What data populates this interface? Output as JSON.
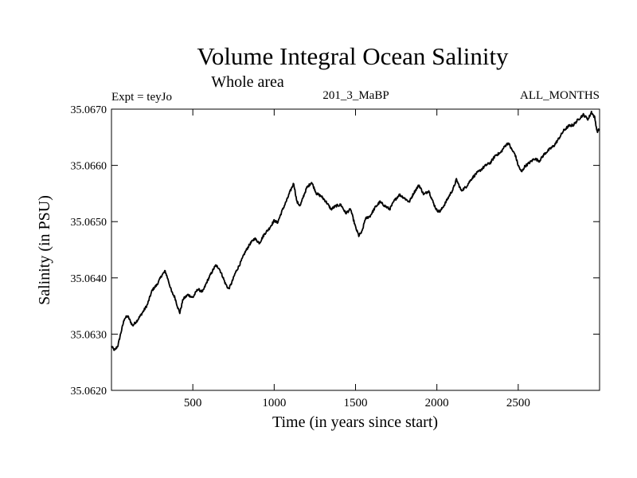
{
  "chart_data": {
    "type": "line",
    "title": "Volume Integral Ocean Salinity",
    "subtitle": "Whole area",
    "header_left": "Expt = teyJo",
    "header_center": "201_3_MaBP",
    "header_right": "ALL_MONTHS",
    "xlabel": "Time (in years since start)",
    "ylabel": "Salinity (in PSU)",
    "xlim": [
      0,
      3000
    ],
    "ylim": [
      35.062,
      35.067
    ],
    "x_ticks": [
      500,
      1000,
      1500,
      2000,
      2500
    ],
    "x_tick_labels": [
      "500",
      "1000",
      "1500",
      "2000",
      "2500"
    ],
    "y_ticks": [
      35.062,
      35.063,
      35.064,
      35.065,
      35.066,
      35.067
    ],
    "y_tick_labels": [
      "35.0620",
      "35.0630",
      "35.0640",
      "35.0650",
      "35.0660",
      "35.0670"
    ],
    "grid": false,
    "line_color": "#000000",
    "series": [
      {
        "name": "Salinity",
        "x": [
          0,
          20,
          40,
          60,
          80,
          100,
          130,
          160,
          190,
          220,
          250,
          280,
          310,
          330,
          350,
          370,
          390,
          410,
          420,
          440,
          470,
          500,
          530,
          560,
          590,
          620,
          640,
          660,
          680,
          700,
          720,
          740,
          760,
          790,
          820,
          850,
          880,
          910,
          940,
          970,
          1000,
          1020,
          1050,
          1080,
          1100,
          1120,
          1140,
          1160,
          1180,
          1200,
          1230,
          1260,
          1290,
          1320,
          1350,
          1380,
          1410,
          1440,
          1470,
          1500,
          1520,
          1540,
          1560,
          1590,
          1620,
          1650,
          1680,
          1710,
          1740,
          1770,
          1800,
          1830,
          1860,
          1890,
          1920,
          1950,
          1980,
          2000,
          2020,
          2050,
          2080,
          2100,
          2120,
          2150,
          2180,
          2210,
          2240,
          2270,
          2300,
          2330,
          2360,
          2390,
          2420,
          2440,
          2460,
          2480,
          2500,
          2520,
          2540,
          2570,
          2600,
          2630,
          2660,
          2690,
          2720,
          2750,
          2780,
          2810,
          2840,
          2870,
          2900,
          2930,
          2950,
          2970,
          2985,
          3000
        ],
        "values": [
          35.06278,
          35.06271,
          35.0628,
          35.06305,
          35.06328,
          35.06332,
          35.06315,
          35.06325,
          35.06338,
          35.06352,
          35.06378,
          35.06388,
          35.06405,
          35.06412,
          35.06395,
          35.06375,
          35.06365,
          35.06345,
          35.06338,
          35.06362,
          35.0637,
          35.06365,
          35.0638,
          35.06375,
          35.06395,
          35.06412,
          35.06422,
          35.06418,
          35.06405,
          35.0639,
          35.0638,
          35.06392,
          35.06408,
          35.06425,
          35.06445,
          35.0646,
          35.0647,
          35.06462,
          35.06478,
          35.06488,
          35.06502,
          35.06498,
          35.0652,
          35.0654,
          35.06555,
          35.06568,
          35.06535,
          35.06528,
          35.06545,
          35.0656,
          35.0657,
          35.0655,
          35.06545,
          35.06535,
          35.06522,
          35.06528,
          35.0653,
          35.06515,
          35.06522,
          35.0649,
          35.06475,
          35.06482,
          35.06505,
          35.0651,
          35.06525,
          35.06535,
          35.06528,
          35.06522,
          35.06538,
          35.06548,
          35.06542,
          35.06535,
          35.06552,
          35.06565,
          35.06548,
          35.06555,
          35.06532,
          35.0652,
          35.06518,
          35.06532,
          35.06548,
          35.06558,
          35.06575,
          35.06555,
          35.06562,
          35.06575,
          35.06585,
          35.06592,
          35.066,
          35.06605,
          35.06618,
          35.06622,
          35.06635,
          35.0664,
          35.06628,
          35.0662,
          35.066,
          35.06588,
          35.06598,
          35.06605,
          35.06612,
          35.06608,
          35.0662,
          35.06628,
          35.06635,
          35.06648,
          35.06662,
          35.0667,
          35.06672,
          35.06682,
          35.0669,
          35.06682,
          35.06695,
          35.06685,
          35.0666,
          35.06665
        ]
      }
    ]
  }
}
